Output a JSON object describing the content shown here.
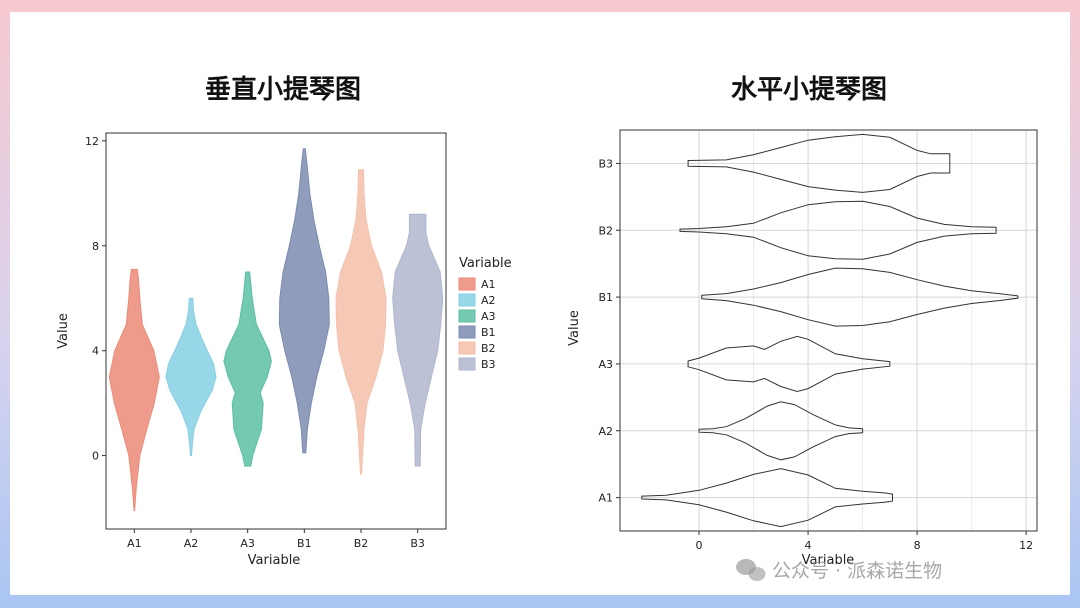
{
  "chart_data": [
    {
      "type": "violin",
      "orientation": "vertical",
      "title": "垂直小提琴图",
      "xlabel": "Variable",
      "ylabel": "Value",
      "ylim": [
        -2.8,
        12.3
      ],
      "yticks": [
        "0",
        "4",
        "8",
        "12"
      ],
      "grid": false,
      "legend": {
        "title": "Variable",
        "position": "right"
      },
      "categories": [
        "A1",
        "A2",
        "A3",
        "B1",
        "B2",
        "B3"
      ],
      "series": [
        {
          "name": "A1",
          "color": "#ec8a78",
          "min": -2.1,
          "max": 7.1,
          "profile": [
            [
              -2.1,
              0.01
            ],
            [
              -1.2,
              0.08
            ],
            [
              0,
              0.22
            ],
            [
              1,
              0.5
            ],
            [
              2,
              0.8
            ],
            [
              3,
              1.0
            ],
            [
              4,
              0.78
            ],
            [
              5,
              0.32
            ],
            [
              6,
              0.22
            ],
            [
              6.8,
              0.16
            ],
            [
              7.1,
              0.12
            ]
          ]
        },
        {
          "name": "A2",
          "color": "#86d0e4",
          "min": 0.0,
          "max": 6.0,
          "profile": [
            [
              0,
              0.02
            ],
            [
              0.5,
              0.06
            ],
            [
              1,
              0.12
            ],
            [
              1.7,
              0.4
            ],
            [
              2.5,
              0.85
            ],
            [
              3,
              1.0
            ],
            [
              3.5,
              0.9
            ],
            [
              4.2,
              0.55
            ],
            [
              5,
              0.2
            ],
            [
              5.5,
              0.1
            ],
            [
              6,
              0.07
            ]
          ]
        },
        {
          "name": "A3",
          "color": "#5bbfa3",
          "min": -0.4,
          "max": 7.0,
          "profile": [
            [
              -0.4,
              0.12
            ],
            [
              0,
              0.2
            ],
            [
              1,
              0.55
            ],
            [
              2,
              0.62
            ],
            [
              2.4,
              0.5
            ],
            [
              3,
              0.78
            ],
            [
              3.6,
              0.95
            ],
            [
              4,
              0.85
            ],
            [
              5,
              0.35
            ],
            [
              6,
              0.18
            ],
            [
              7,
              0.08
            ]
          ]
        },
        {
          "name": "B1",
          "color": "#7b8bb0",
          "min": 0.1,
          "max": 11.7,
          "profile": [
            [
              0.1,
              0.06
            ],
            [
              1,
              0.12
            ],
            [
              2,
              0.28
            ],
            [
              3,
              0.5
            ],
            [
              4,
              0.78
            ],
            [
              5,
              1.0
            ],
            [
              6,
              0.98
            ],
            [
              7,
              0.85
            ],
            [
              8,
              0.6
            ],
            [
              9,
              0.38
            ],
            [
              10,
              0.22
            ],
            [
              11,
              0.12
            ],
            [
              11.7,
              0.04
            ]
          ]
        },
        {
          "name": "B2",
          "color": "#f5c0aa",
          "min": -0.7,
          "max": 10.9,
          "profile": [
            [
              -0.7,
              0.02
            ],
            [
              0,
              0.06
            ],
            [
              1,
              0.12
            ],
            [
              2,
              0.24
            ],
            [
              3,
              0.6
            ],
            [
              4,
              0.88
            ],
            [
              5,
              0.98
            ],
            [
              6,
              1.0
            ],
            [
              7,
              0.82
            ],
            [
              8,
              0.42
            ],
            [
              9,
              0.2
            ],
            [
              10,
              0.12
            ],
            [
              10.9,
              0.1
            ]
          ]
        },
        {
          "name": "B3",
          "color": "#b0b6cf",
          "min": -0.4,
          "max": 9.2,
          "profile": [
            [
              -0.4,
              0.1
            ],
            [
              1,
              0.12
            ],
            [
              2,
              0.3
            ],
            [
              3,
              0.55
            ],
            [
              4,
              0.8
            ],
            [
              5,
              0.92
            ],
            [
              6,
              1.0
            ],
            [
              7,
              0.9
            ],
            [
              8,
              0.45
            ],
            [
              8.5,
              0.33
            ],
            [
              9.2,
              0.33
            ]
          ]
        }
      ]
    },
    {
      "type": "violin",
      "orientation": "horizontal",
      "title": "水平小提琴图",
      "xlabel": "Variable",
      "ylabel": "Value",
      "xlim": [
        -2.9,
        12.4
      ],
      "xticks": [
        "0",
        "4",
        "8",
        "12"
      ],
      "grid": true,
      "categories": [
        "A1",
        "A2",
        "A3",
        "B1",
        "B2",
        "B3"
      ],
      "series": [
        {
          "name": "A1",
          "min": -2.1,
          "max": 7.1,
          "profile": [
            [
              -2.1,
              0.05
            ],
            [
              -1.2,
              0.08
            ],
            [
              0,
              0.25
            ],
            [
              1,
              0.5
            ],
            [
              2,
              0.8
            ],
            [
              3,
              1.0
            ],
            [
              4,
              0.78
            ],
            [
              5,
              0.32
            ],
            [
              6,
              0.22
            ],
            [
              6.8,
              0.16
            ],
            [
              7.1,
              0.12
            ]
          ]
        },
        {
          "name": "A2",
          "min": 0.0,
          "max": 6.0,
          "profile": [
            [
              0,
              0.05
            ],
            [
              0.5,
              0.07
            ],
            [
              1,
              0.14
            ],
            [
              1.7,
              0.42
            ],
            [
              2.5,
              0.85
            ],
            [
              3,
              1.0
            ],
            [
              3.5,
              0.9
            ],
            [
              4.2,
              0.55
            ],
            [
              5,
              0.2
            ],
            [
              5.5,
              0.1
            ],
            [
              6,
              0.07
            ]
          ]
        },
        {
          "name": "A3",
          "min": -0.4,
          "max": 7.0,
          "profile": [
            [
              -0.4,
              0.1
            ],
            [
              0,
              0.2
            ],
            [
              1,
              0.55
            ],
            [
              2,
              0.62
            ],
            [
              2.4,
              0.5
            ],
            [
              3,
              0.78
            ],
            [
              3.6,
              0.95
            ],
            [
              4,
              0.85
            ],
            [
              5,
              0.35
            ],
            [
              6,
              0.18
            ],
            [
              7,
              0.08
            ]
          ]
        },
        {
          "name": "B1",
          "min": 0.1,
          "max": 11.7,
          "profile": [
            [
              0.1,
              0.06
            ],
            [
              1,
              0.12
            ],
            [
              2,
              0.28
            ],
            [
              3,
              0.5
            ],
            [
              4,
              0.78
            ],
            [
              5,
              1.0
            ],
            [
              6,
              0.98
            ],
            [
              7,
              0.85
            ],
            [
              8,
              0.6
            ],
            [
              9,
              0.38
            ],
            [
              10,
              0.22
            ],
            [
              11,
              0.12
            ],
            [
              11.7,
              0.04
            ]
          ]
        },
        {
          "name": "B2",
          "min": -0.7,
          "max": 10.9,
          "profile": [
            [
              -0.7,
              0.04
            ],
            [
              0,
              0.06
            ],
            [
              1,
              0.12
            ],
            [
              2,
              0.24
            ],
            [
              3,
              0.6
            ],
            [
              4,
              0.88
            ],
            [
              5,
              0.98
            ],
            [
              6,
              1.0
            ],
            [
              7,
              0.82
            ],
            [
              8,
              0.42
            ],
            [
              9,
              0.2
            ],
            [
              10,
              0.12
            ],
            [
              10.9,
              0.1
            ]
          ]
        },
        {
          "name": "B3",
          "min": -0.4,
          "max": 9.2,
          "profile": [
            [
              -0.4,
              0.1
            ],
            [
              1,
              0.12
            ],
            [
              2,
              0.3
            ],
            [
              3,
              0.55
            ],
            [
              4,
              0.8
            ],
            [
              5,
              0.92
            ],
            [
              6,
              1.0
            ],
            [
              7,
              0.9
            ],
            [
              8,
              0.45
            ],
            [
              8.5,
              0.33
            ],
            [
              9.2,
              0.33
            ]
          ]
        }
      ]
    }
  ],
  "watermark": "公众号 · 派森诺生物"
}
